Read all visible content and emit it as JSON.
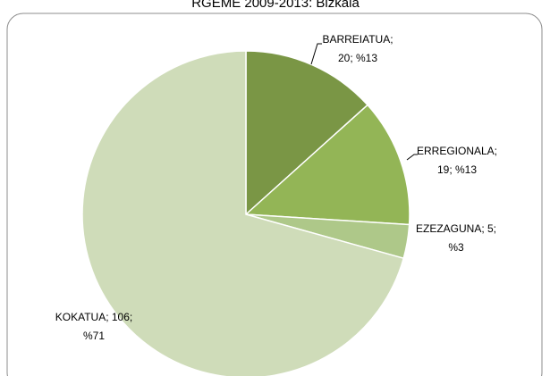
{
  "chart_data": {
    "type": "pie",
    "title": "RGEME 2009-2013: Bizkaia",
    "categories": [
      "BARREIATUA",
      "ERREGIONALA",
      "EZEZAGUNA",
      "KOKATUA"
    ],
    "values": [
      20,
      19,
      5,
      106
    ],
    "value_labels": [
      [
        "BARREIATUA;",
        "20; %13"
      ],
      [
        "ERREGIONALA;",
        "19; %13"
      ],
      [
        "EZEZAGUNA; 5;",
        "%3"
      ],
      [
        "KOKATUA; 106;",
        "%71"
      ]
    ],
    "colors": [
      "#7a9645",
      "#93b556",
      "#aec889",
      "#cfdcb9"
    ]
  }
}
